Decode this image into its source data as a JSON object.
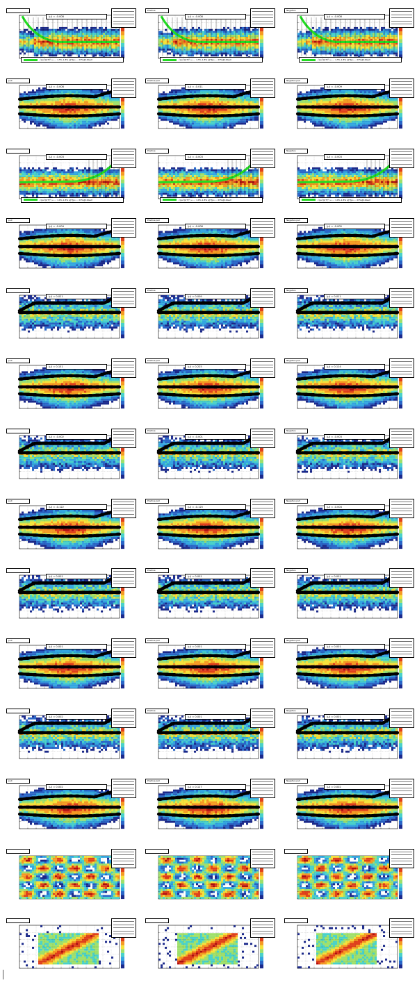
{
  "colors": {
    "palette": [
      "#1c2a8c",
      "#2a66c8",
      "#33a6e0",
      "#49d1c9",
      "#9fe06a",
      "#f5e23a",
      "#f59a22",
      "#e0401a",
      "#b01010"
    ],
    "marker": "#000000",
    "fit": "#22dd22"
  },
  "chart_data": {
    "type": "heatmap",
    "layout": {
      "rows": 14,
      "cols": 3
    },
    "column_groups": [
      "",
      "Positive",
      "Negative"
    ],
    "panels": [
      {
        "id": "r1c1",
        "title": "",
        "kind": "resolution",
        "mean": -0.008,
        "fit_formula": "√(p₀²/p[T]²) + ... 1.5%  1.8%  p[T]p₀ ... 23%@10GeV"
      },
      {
        "id": "r1c2",
        "title": "Positive",
        "kind": "resolution",
        "mean": -0.008,
        "fit_formula": "√(p₀²/p[T]²) + ... 1.5%  1.8%  p[T]p₀ ... 23%@10GeV"
      },
      {
        "id": "r1c3",
        "title": "Negative",
        "kind": "resolution",
        "mean": -0.008,
        "fit_formula": "√(p₀²/p[T]²) + ... 1.5%  1.8%  p[T]p₀ ... 23%@10GeV"
      },
      {
        "id": "r2c1",
        "title": "pull",
        "kind": "pull",
        "mean": -0.008
      },
      {
        "id": "r2c2",
        "title": "Positive pull",
        "kind": "pull",
        "mean": -0.011
      },
      {
        "id": "r2c3",
        "title": "Negative pull",
        "kind": "pull",
        "mean": -0.009
      },
      {
        "id": "r3c1",
        "title": "",
        "kind": "resolution-rising",
        "mean": -0.003,
        "fit_formula": "√(p₀²/p[T]²) + ... 1.6%  1.8%  p[T]p₀ ... 23%@10GeV"
      },
      {
        "id": "r3c2",
        "title": "Positive",
        "kind": "resolution-rising",
        "mean": -0.003,
        "fit_formula": "√(p₀²/p[T]²) + ... 1.6%  1.8%  p[T]p₀ ... 23%@10GeV"
      },
      {
        "id": "r3c3",
        "title": "Negative",
        "kind": "resolution-rising",
        "mean": -0.003,
        "fit_formula": "√(p₀²/p[T]²) + ... 1.6%  1.8%  p[T]p₀ ... 23%@10GeV"
      },
      {
        "id": "r4c1",
        "title": "pull",
        "kind": "pull",
        "mean": -0.004
      },
      {
        "id": "r4c2",
        "title": "Positive pull",
        "kind": "pull",
        "mean": -0.006
      },
      {
        "id": "r4c3",
        "title": "Negative pull",
        "kind": "pull",
        "mean": -0.005
      },
      {
        "id": "r5c1",
        "title": "",
        "kind": "flat",
        "mean": 0.021
      },
      {
        "id": "r5c2",
        "title": "Positive",
        "kind": "flat",
        "mean": 0.009
      },
      {
        "id": "r5c3",
        "title": "Negative",
        "kind": "flat",
        "mean": 0.011
      },
      {
        "id": "r6c1",
        "title": "pull",
        "kind": "pull",
        "mean": 0.151
      },
      {
        "id": "r6c2",
        "title": "Positive pull",
        "kind": "pull",
        "mean": 0.225
      },
      {
        "id": "r6c3",
        "title": "Negative pull",
        "kind": "pull",
        "mean": 0.114
      },
      {
        "id": "r7c1",
        "title": "",
        "kind": "flat",
        "mean": -0.002
      },
      {
        "id": "r7c2",
        "title": "Positive",
        "kind": "flat",
        "mean": -0.001
      },
      {
        "id": "r7c3",
        "title": "Negative",
        "kind": "flat",
        "mean": -0.003
      },
      {
        "id": "r8c1",
        "title": "pull",
        "kind": "pull",
        "mean": -0.122
      },
      {
        "id": "r8c2",
        "title": "Positive pull",
        "kind": "pull",
        "mean": -0.125
      },
      {
        "id": "r8c3",
        "title": "Negative pull",
        "kind": "pull",
        "mean": -0.004
      },
      {
        "id": "r9c1",
        "title": "",
        "kind": "flat",
        "mean": 0.001
      },
      {
        "id": "r9c2",
        "title": "Positive",
        "kind": "flat",
        "mean": 0.001
      },
      {
        "id": "r9c3",
        "title": "Negative",
        "kind": "flat",
        "mean": 0.001
      },
      {
        "id": "r10c1",
        "title": "pull",
        "kind": "pull",
        "mean": 0.001
      },
      {
        "id": "r10c2",
        "title": "Positive pull",
        "kind": "pull",
        "mean": 0.001
      },
      {
        "id": "r10c3",
        "title": "Negative pull",
        "kind": "pull",
        "mean": 0.001
      },
      {
        "id": "r11c1",
        "title": "",
        "kind": "flat",
        "mean": 0.002
      },
      {
        "id": "r11c2",
        "title": "Positive",
        "kind": "flat",
        "mean": 0.001
      },
      {
        "id": "r11c3",
        "title": "Negative",
        "kind": "flat",
        "mean": 0.001
      },
      {
        "id": "r12c1",
        "title": "pull",
        "kind": "pull",
        "mean": 0.002
      },
      {
        "id": "r12c2",
        "title": "Positive pull",
        "kind": "pull",
        "mean": 0.127
      },
      {
        "id": "r12c3",
        "title": "Negative pull",
        "kind": "pull",
        "mean": 0.002
      },
      {
        "id": "r13c1",
        "title": "",
        "kind": "cells"
      },
      {
        "id": "r13c2",
        "title": "",
        "kind": "cells"
      },
      {
        "id": "r13c3",
        "title": "",
        "kind": "cells"
      },
      {
        "id": "r14c1",
        "title": "",
        "kind": "diagonal"
      },
      {
        "id": "r14c2",
        "title": "",
        "kind": "diagonal"
      },
      {
        "id": "r14c3",
        "title": "",
        "kind": "diagonal"
      }
    ]
  }
}
